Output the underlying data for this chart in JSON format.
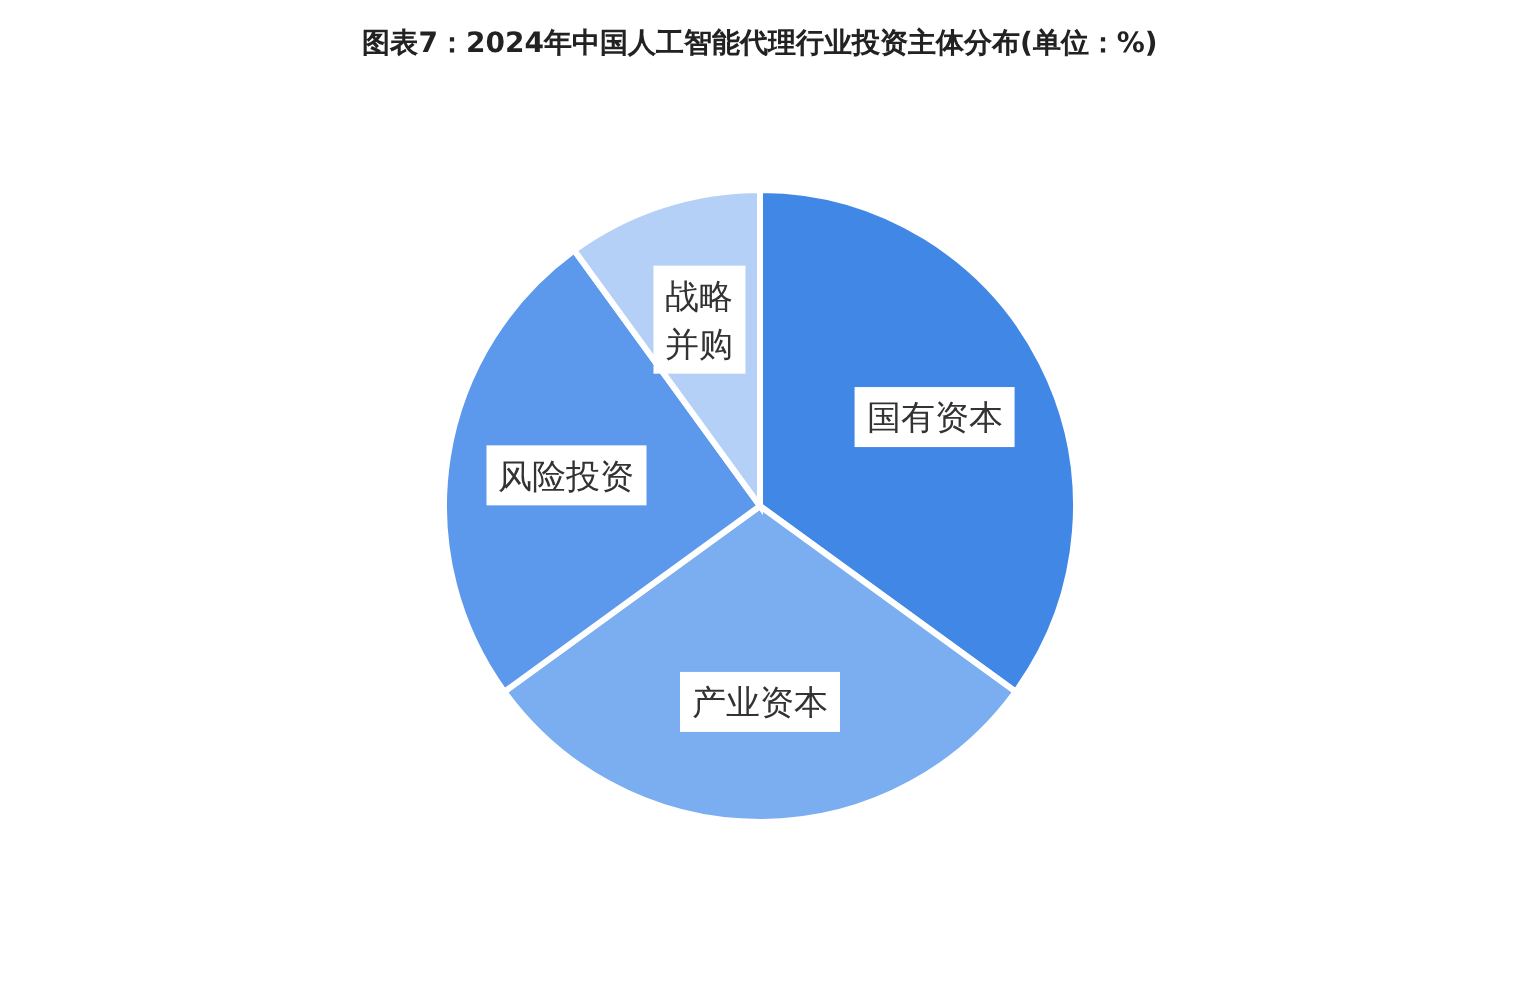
{
  "chart_data": {
    "type": "pie",
    "title": "图表7：2024年中国人工智能代理行业投资主体分布(单位：%)",
    "categories": [
      "国有资本",
      "产业资本",
      "风险投资",
      "战略并购"
    ],
    "values": [
      35,
      30,
      25,
      10
    ],
    "colors": [
      "#4187e6",
      "#7aaef0",
      "#5c98eb",
      "#b4d0f7"
    ]
  }
}
